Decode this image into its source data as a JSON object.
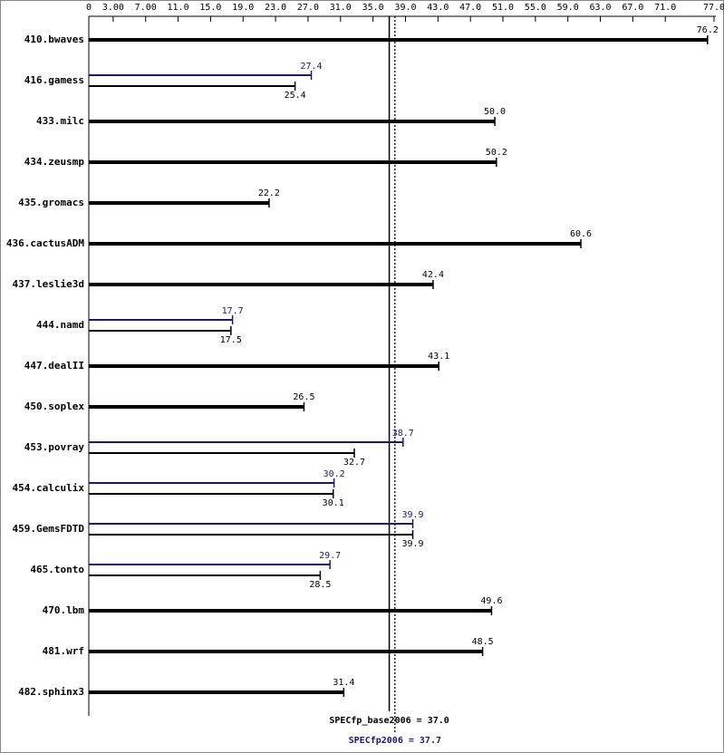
{
  "chart_data": {
    "type": "bar",
    "orientation": "horizontal",
    "categories": [
      "410.bwaves",
      "416.gamess",
      "433.milc",
      "434.zeusmp",
      "435.gromacs",
      "436.cactusADM",
      "437.leslie3d",
      "444.namd",
      "447.dealII",
      "450.soplex",
      "453.povray",
      "454.calculix",
      "459.GemsFDTD",
      "465.tonto",
      "470.lbm",
      "481.wrf",
      "482.sphinx3"
    ],
    "series": [
      {
        "color": "#000000",
        "values": [
          76.2,
          25.4,
          50.0,
          50.2,
          22.2,
          60.6,
          42.4,
          17.5,
          43.1,
          26.5,
          32.7,
          30.1,
          39.9,
          28.5,
          49.6,
          48.5,
          31.4
        ],
        "value_labels": [
          "76.2",
          "25.4",
          "50.0",
          "50.2",
          "22.2",
          "60.6",
          "42.4",
          "17.5",
          "43.1",
          "26.5",
          "32.7",
          "30.1",
          "39.9",
          "28.5",
          "49.6",
          "48.5",
          "31.4"
        ]
      },
      {
        "color": "#191970",
        "values": [
          null,
          27.4,
          null,
          null,
          null,
          null,
          null,
          17.7,
          null,
          null,
          38.7,
          30.2,
          39.9,
          29.7,
          null,
          null,
          null
        ],
        "value_labels": [
          null,
          "27.4",
          null,
          null,
          null,
          null,
          null,
          "17.7",
          null,
          null,
          "38.7",
          "30.2",
          "39.9",
          "29.7",
          null,
          null,
          null
        ]
      }
    ],
    "xlim": [
      0,
      77
    ],
    "xticks": [
      0,
      {
        "value": 3,
        "label": "3.00"
      },
      {
        "value": 7,
        "label": "7.00"
      },
      {
        "value": 11,
        "label": "11.0"
      },
      {
        "value": 15,
        "label": "15.0"
      },
      {
        "value": 19,
        "label": "19.0"
      },
      {
        "value": 23,
        "label": "23.0"
      },
      {
        "value": 27,
        "label": "27.0"
      },
      {
        "value": 31,
        "label": "31.0"
      },
      {
        "value": 35,
        "label": "35.0"
      },
      {
        "value": 39,
        "label": "39.0"
      },
      {
        "value": 43,
        "label": "43.0"
      },
      {
        "value": 47,
        "label": "47.0"
      },
      {
        "value": 51,
        "label": "51.0"
      },
      {
        "value": 55,
        "label": "55.0"
      },
      {
        "value": 59,
        "label": "59.0"
      },
      {
        "value": 63,
        "label": "63.0"
      },
      {
        "value": 67,
        "label": "67.0"
      },
      {
        "value": 71,
        "label": "71.0"
      },
      {
        "value": 77,
        "label": "77.0"
      }
    ],
    "reference_lines": [
      {
        "value": 37.0,
        "label": "SPECfp_base2006 = 37.0",
        "color": "#000000",
        "style": "solid"
      },
      {
        "value": 37.7,
        "label": "SPECfp2006 = 37.7",
        "color": "#191970",
        "style": "dotted"
      }
    ]
  }
}
